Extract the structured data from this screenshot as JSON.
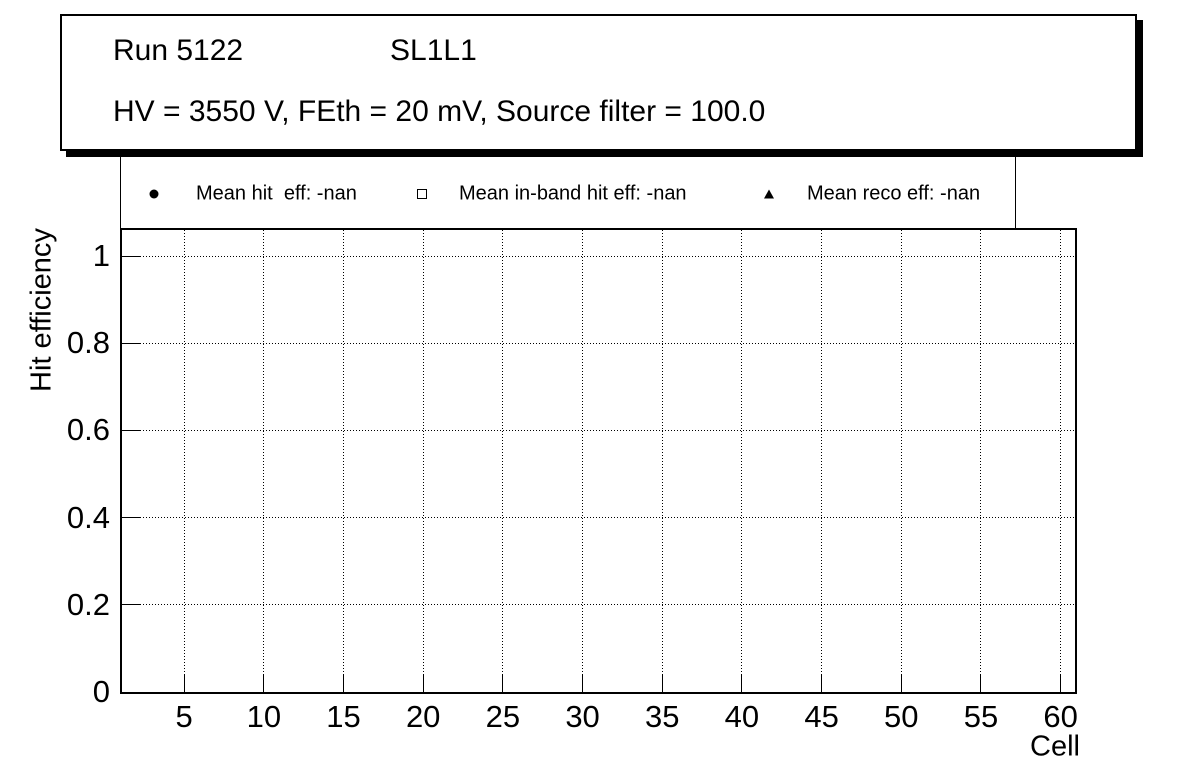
{
  "title_box": {
    "run": "Run 5122",
    "chamber": "SL1L1",
    "conditions": "HV = 3550 V, FEth = 20 mV, Source filter = 100.0"
  },
  "legend": {
    "entries": [
      {
        "marker": "filled-circle",
        "label": "Mean hit  eff: -nan"
      },
      {
        "marker": "open-square",
        "label": "Mean in-band hit eff: -nan"
      },
      {
        "marker": "filled-triangle",
        "label": "Mean reco eff: -nan"
      }
    ]
  },
  "chart_data": {
    "type": "scatter",
    "title": "Run 5122 SL1L1",
    "subtitle": "HV = 3550 V, FEth = 20 mV, Source filter = 100.0",
    "xlabel": "Cell",
    "ylabel": "Hit efficiency",
    "xlim": [
      1.1,
      60.9
    ],
    "ylim": [
      0,
      1.06
    ],
    "x_ticks": [
      5,
      10,
      15,
      20,
      25,
      30,
      35,
      40,
      45,
      50,
      55,
      60
    ],
    "y_ticks": [
      0,
      0.2,
      0.4,
      0.6,
      0.8,
      1
    ],
    "y_tick_labels": [
      "0",
      "0.2",
      "0.4",
      "0.6",
      "0.8",
      "1"
    ],
    "grid": "dotted",
    "legend_position": "top",
    "series": [
      {
        "name": "Mean hit  eff: -nan",
        "marker": "filled-circle",
        "points": []
      },
      {
        "name": "Mean in-band hit eff: -nan",
        "marker": "open-square",
        "points": []
      },
      {
        "name": "Mean reco eff: -nan",
        "marker": "filled-triangle",
        "points": []
      }
    ],
    "colors": {
      "foreground": "#000000",
      "background": "#ffffff"
    }
  }
}
